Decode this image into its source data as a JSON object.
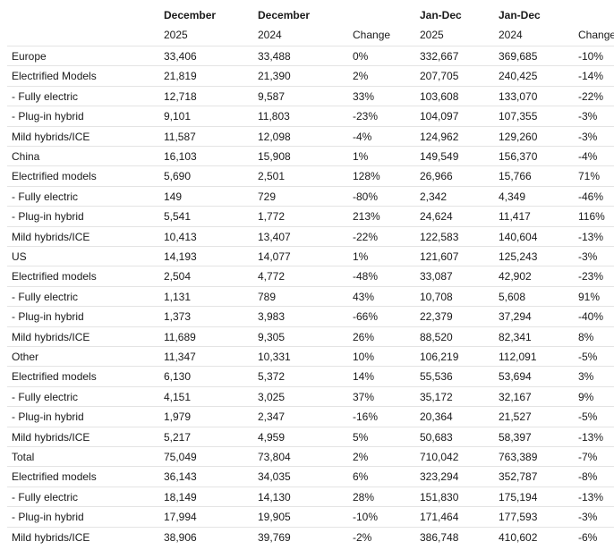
{
  "table": {
    "columns": [
      {
        "top": "December",
        "bottom": "2025"
      },
      {
        "top": "December",
        "bottom": "2024"
      },
      {
        "bottom": "Change"
      },
      {
        "top": "Jan-Dec",
        "bottom": "2025"
      },
      {
        "top": "Jan-Dec",
        "bottom": "2024"
      },
      {
        "bottom": "Change"
      }
    ],
    "rows": [
      [
        "Europe",
        "33,406",
        "33,488",
        "0%",
        "332,667",
        "369,685",
        "-10%"
      ],
      [
        "Electrified Models",
        "21,819",
        "21,390",
        "2%",
        "207,705",
        "240,425",
        "-14%"
      ],
      [
        "- Fully electric",
        "12,718",
        "9,587",
        "33%",
        "103,608",
        "133,070",
        "-22%"
      ],
      [
        "- Plug-in hybrid",
        "9,101",
        "11,803",
        "-23%",
        "104,097",
        "107,355",
        "-3%"
      ],
      [
        "Mild hybrids/ICE",
        "11,587",
        "12,098",
        "-4%",
        "124,962",
        "129,260",
        "-3%"
      ],
      [
        "China",
        "16,103",
        "15,908",
        "1%",
        "149,549",
        "156,370",
        "-4%"
      ],
      [
        "Electrified models",
        "5,690",
        "2,501",
        "128%",
        "26,966",
        "15,766",
        "71%"
      ],
      [
        "- Fully electric",
        "149",
        "729",
        "-80%",
        "2,342",
        "4,349",
        "-46%"
      ],
      [
        "- Plug-in hybrid",
        "5,541",
        "1,772",
        "213%",
        "24,624",
        "11,417",
        "116%"
      ],
      [
        "Mild hybrids/ICE",
        "10,413",
        "13,407",
        "-22%",
        "122,583",
        "140,604",
        "-13%"
      ],
      [
        "US",
        "14,193",
        "14,077",
        "1%",
        "121,607",
        "125,243",
        "-3%"
      ],
      [
        "Electrified models",
        "2,504",
        "4,772",
        "-48%",
        "33,087",
        "42,902",
        "-23%"
      ],
      [
        "- Fully electric",
        "1,131",
        "789",
        "43%",
        "10,708",
        "5,608",
        "91%"
      ],
      [
        "- Plug-in hybrid",
        "1,373",
        "3,983",
        "-66%",
        "22,379",
        "37,294",
        "-40%"
      ],
      [
        "Mild hybrids/ICE",
        "11,689",
        "9,305",
        "26%",
        "88,520",
        "82,341",
        "8%"
      ],
      [
        "Other",
        "11,347",
        "10,331",
        "10%",
        "106,219",
        "112,091",
        "-5%"
      ],
      [
        "Electrified models",
        "6,130",
        "5,372",
        "14%",
        "55,536",
        "53,694",
        "3%"
      ],
      [
        "- Fully electric",
        "4,151",
        "3,025",
        "37%",
        "35,172",
        "32,167",
        "9%"
      ],
      [
        "- Plug-in hybrid",
        "1,979",
        "2,347",
        "-16%",
        "20,364",
        "21,527",
        "-5%"
      ],
      [
        "Mild hybrids/ICE",
        "5,217",
        "4,959",
        "5%",
        "50,683",
        "58,397",
        "-13%"
      ],
      [
        "Total",
        "75,049",
        "73,804",
        "2%",
        "710,042",
        "763,389",
        "-7%"
      ],
      [
        "Electrified models",
        "36,143",
        "34,035",
        "6%",
        "323,294",
        "352,787",
        "-8%"
      ],
      [
        "- Fully electric",
        "18,149",
        "14,130",
        "28%",
        "151,830",
        "175,194",
        "-13%"
      ],
      [
        "- Plug-in hybrid",
        "17,994",
        "19,905",
        "-10%",
        "171,464",
        "177,593",
        "-3%"
      ],
      [
        "Mild hybrids/ICE",
        "38,906",
        "39,769",
        "-2%",
        "386,748",
        "410,602",
        "-6%"
      ]
    ]
  }
}
